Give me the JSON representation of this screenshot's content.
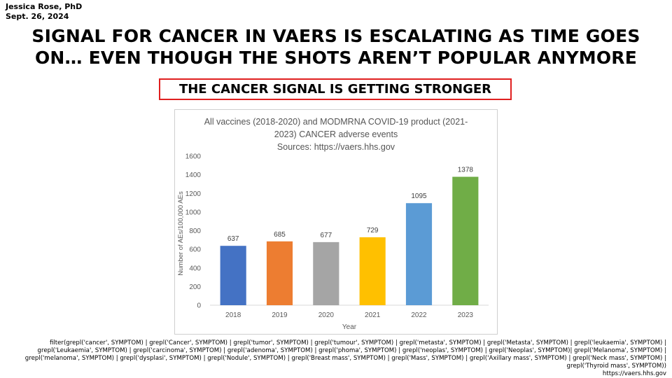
{
  "header": {
    "author": "Jessica Rose, PhD",
    "date": "Sept. 26, 2024",
    "title_line1": "SIGNAL FOR CANCER IN VAERS IS ESCALATING AS TIME GOES",
    "title_line2": "ON… EVEN THOUGH THE SHOTS AREN’T POPULAR ANYMORE",
    "callout": "THE CANCER SIGNAL IS GETTING STRONGER"
  },
  "colors": {
    "callout_border": "#e02020",
    "axis": "#d9d9d9",
    "text_muted": "#595959"
  },
  "chart_data": {
    "type": "bar",
    "title_lines": [
      "All vaccines (2018-2020) and MODMRNA COVID-19 product (2021-",
      "2023) CANCER adverse events",
      "Sources: https://vaers.hhs.gov"
    ],
    "categories": [
      "2018",
      "2019",
      "2020",
      "2021",
      "2022",
      "2023"
    ],
    "values": [
      637,
      685,
      677,
      729,
      1095,
      1378
    ],
    "value_labels": [
      "637",
      "685",
      "677",
      "729",
      "1095",
      "1378"
    ],
    "bar_colors": [
      "#4472c4",
      "#ed7d31",
      "#a5a5a5",
      "#ffc000",
      "#5b9bd5",
      "#70ad47"
    ],
    "xlabel": "Year",
    "ylabel": "Number of AEs/100,000 AEs",
    "ylim": [
      0,
      1600
    ],
    "yticks": [
      0,
      200,
      400,
      600,
      800,
      1000,
      1200,
      1400,
      1600
    ],
    "ytick_labels": [
      "0",
      "200",
      "400",
      "600",
      "800",
      "1000",
      "1200",
      "1400",
      "1600"
    ],
    "grid": false,
    "legend": "none"
  },
  "footer": {
    "filter_line1": "filter(grepl('cancer', SYMPTOM) | grepl('Cancer', SYMPTOM) | grepl('tumor', SYMPTOM) | grepl('tumour', SYMPTOM) | grepl('metasta', SYMPTOM) | grepl('Metasta', SYMPTOM) | grepl('leukaemia', SYMPTOM) |",
    "filter_line2": "grepl('Leukaemia', SYMPTOM) | grepl('carcinoma', SYMPTOM) | grepl('adenoma', SYMPTOM) | grepl('phoma', SYMPTOM) | grepl('neoplas', SYMPTOM) | grepl('Neoplas', SYMPTOM)| grepl('Melanoma', SYMPTOM) |",
    "filter_line3": "grepl('melanoma', SYMPTOM) | grepl('dysplasi', SYMPTOM) | grepl('Nodule', SYMPTOM) | grepl('Breast mass', SYMPTOM) | grepl('Mass', SYMPTOM) | grepl('Axillary mass', SYMPTOM) | grepl('Neck mass', SYMPTOM) |",
    "filter_line4": "grepl('Thyroid mass', SYMPTOM))",
    "source": "https://vaers.hhs.gov"
  }
}
